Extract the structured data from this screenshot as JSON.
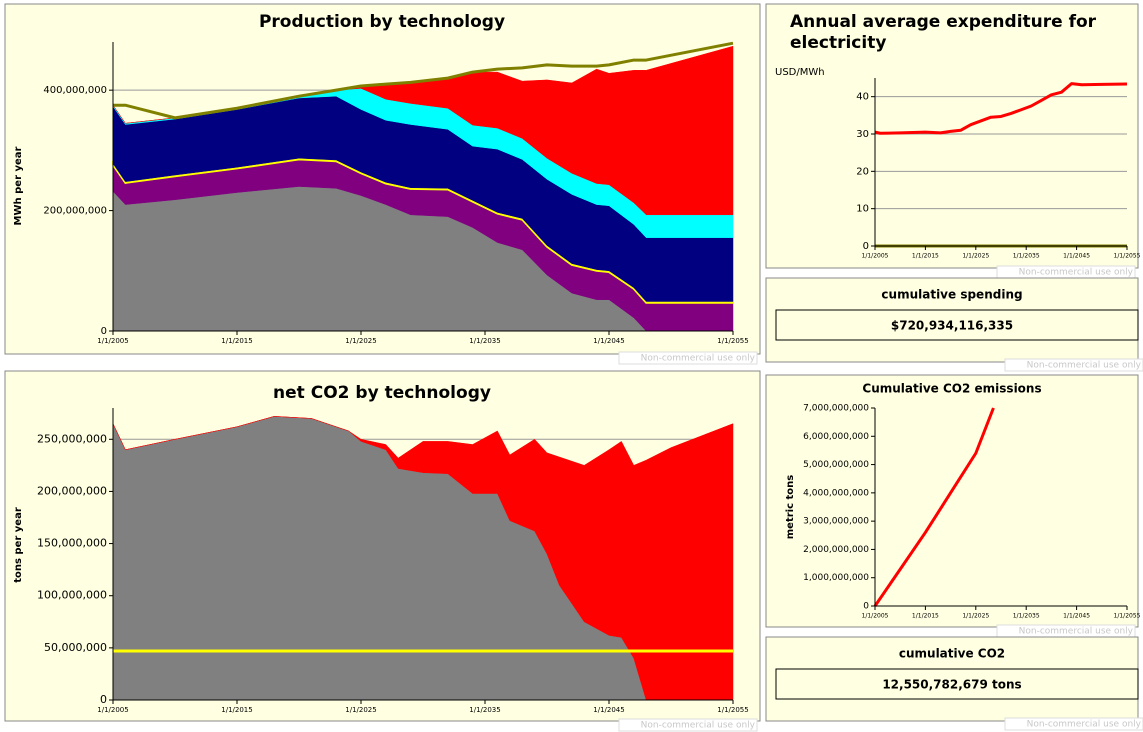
{
  "chart_data": [
    {
      "type": "area",
      "title": "Production by technology",
      "y_label": "MWh per year",
      "x": [
        2005,
        2006,
        2010,
        2015,
        2020,
        2023,
        2025,
        2027,
        2029,
        2032,
        2034,
        2036,
        2038,
        2040,
        2042,
        2044,
        2045,
        2047,
        2048,
        2055
      ],
      "xlim": [
        2005,
        2055
      ],
      "xticks": [
        {
          "value": 2005,
          "label": "1/1/2005"
        },
        {
          "value": 2015,
          "label": "1/1/2015"
        },
        {
          "value": 2025,
          "label": "1/1/2025"
        },
        {
          "value": 2035,
          "label": "1/1/2035"
        },
        {
          "value": 2045,
          "label": "1/1/2045"
        },
        {
          "value": 2055,
          "label": "1/1/2055"
        }
      ],
      "ylim": [
        0,
        480000000
      ],
      "yticks": [
        0,
        {
          "value": 200000000,
          "label": "200,000,000"
        },
        {
          "value": 400000000,
          "label": "400,000,000"
        }
      ],
      "grid": true,
      "series": [
        {
          "color": "#808080",
          "values": [
            232000000,
            210000000,
            218000000,
            230000000,
            240000000,
            237000000,
            225000000,
            210000000,
            193000000,
            190000000,
            172000000,
            147000000,
            135000000,
            93000000,
            63000000,
            52000000,
            52000000,
            22000000,
            0,
            0
          ]
        },
        {
          "color": "#800080",
          "values": [
            44000000,
            36000000,
            39000000,
            40000000,
            45000000,
            45000000,
            37000000,
            35000000,
            43000000,
            45000000,
            43000000,
            48000000,
            50000000,
            47000000,
            47000000,
            48000000,
            46000000,
            48000000,
            47000000,
            47000000
          ]
        },
        {
          "color": "#ffff00",
          "values": [
            2000000,
            2000000,
            2000000,
            2000000,
            2000000,
            2000000,
            2000000,
            2000000,
            2000000,
            2000000,
            2000000,
            2000000,
            2000000,
            2000000,
            2000000,
            2000000,
            2000000,
            2000000,
            2000000,
            2000000
          ]
        },
        {
          "color": "#000080",
          "values": [
            95000000,
            95000000,
            93000000,
            96000000,
            100000000,
            106000000,
            104000000,
            103000000,
            105000000,
            98000000,
            90000000,
            105000000,
            98000000,
            110000000,
            115000000,
            108000000,
            108000000,
            105000000,
            106000000,
            106000000
          ]
        },
        {
          "color": "#00ffff",
          "values": [
            2000000,
            2000000,
            2000000,
            2000000,
            2000000,
            10000000,
            35000000,
            35000000,
            35000000,
            35000000,
            35000000,
            35000000,
            35000000,
            35000000,
            35000000,
            35000000,
            35000000,
            36000000,
            38000000,
            38000000
          ]
        },
        {
          "color": "#ff0000",
          "values": [
            0,
            0,
            0,
            0,
            0,
            0,
            4000000,
            25000000,
            35000000,
            50000000,
            88000000,
            93000000,
            95000000,
            130000000,
            150000000,
            190000000,
            185000000,
            220000000,
            240000000,
            280000000
          ]
        },
        {
          "color": "#808000",
          "style": "line",
          "values": [
            375000000,
            375000000,
            354000000,
            370000000,
            390000000,
            400000000,
            407000000,
            410000000,
            413000000,
            420000000,
            430000000,
            435000000,
            437000000,
            442000000,
            440000000,
            440000000,
            442000000,
            450000000,
            450000000,
            478000000
          ]
        }
      ]
    },
    {
      "type": "area",
      "title": "net CO2 by technology",
      "y_label": "tons per year",
      "x": [
        2005,
        2006,
        2010,
        2015,
        2018,
        2021,
        2024,
        2025,
        2027,
        2028,
        2030,
        2032,
        2034,
        2036,
        2037,
        2039,
        2040,
        2041,
        2043,
        2045,
        2046,
        2047,
        2048,
        2050,
        2055
      ],
      "xlim": [
        2005,
        2055
      ],
      "xticks": [
        {
          "value": 2005,
          "label": "1/1/2005"
        },
        {
          "value": 2015,
          "label": "1/1/2015"
        },
        {
          "value": 2025,
          "label": "1/1/2025"
        },
        {
          "value": 2035,
          "label": "1/1/2035"
        },
        {
          "value": 2045,
          "label": "1/1/2045"
        },
        {
          "value": 2055,
          "label": "1/1/2055"
        }
      ],
      "ylim": [
        0,
        280000000
      ],
      "yticks": [
        0,
        {
          "value": 50000000,
          "label": "50,000,000"
        },
        {
          "value": 100000000,
          "label": "100,000,000"
        },
        {
          "value": 150000000,
          "label": "150,000,000"
        },
        {
          "value": 200000000,
          "label": "200,000,000"
        },
        {
          "value": 250000000,
          "label": "250,000,000"
        }
      ],
      "grid": true,
      "series": [
        {
          "color": "#808080",
          "values": [
            265000000,
            240000000,
            250000000,
            262000000,
            272000000,
            270000000,
            258000000,
            248000000,
            240000000,
            222000000,
            218000000,
            217000000,
            198000000,
            198000000,
            172000000,
            162000000,
            140000000,
            110000000,
            75000000,
            62000000,
            60000000,
            40000000,
            0,
            0,
            0
          ]
        },
        {
          "color": "#ff0000",
          "values": [
            0,
            0,
            0,
            0,
            0,
            0,
            0,
            2000000,
            5000000,
            10000000,
            30000000,
            31000000,
            47000000,
            60000000,
            63000000,
            88000000,
            97000000,
            123000000,
            150000000,
            178000000,
            188000000,
            185000000,
            230000000,
            242000000,
            265000000
          ]
        },
        {
          "color": "#ffff00",
          "style": "line",
          "values": [
            47000000,
            47000000,
            47000000,
            47000000,
            47000000,
            47000000,
            47000000,
            47000000,
            47000000,
            47000000,
            47000000,
            47000000,
            47000000,
            47000000,
            47000000,
            47000000,
            47000000,
            47000000,
            47000000,
            47000000,
            47000000,
            47000000,
            47000000,
            47000000,
            47000000
          ]
        }
      ]
    },
    {
      "type": "line",
      "title": "Annual average expenditure for electricity",
      "y_label": "USD/MWh",
      "x": [
        2005,
        2006,
        2010,
        2015,
        2018,
        2020,
        2022,
        2024,
        2026,
        2028,
        2030,
        2032,
        2034,
        2036,
        2038,
        2040,
        2042,
        2044,
        2046,
        2050,
        2055
      ],
      "xlim": [
        2005,
        2055
      ],
      "xticks": [
        {
          "value": 2005,
          "label": "1/1/2005"
        },
        {
          "value": 2015,
          "label": "1/1/2015"
        },
        {
          "value": 2025,
          "label": "1/1/2025"
        },
        {
          "value": 2035,
          "label": "1/1/2035"
        },
        {
          "value": 2045,
          "label": "1/1/2045"
        },
        {
          "value": 2055,
          "label": "1/1/2055"
        }
      ],
      "ylim": [
        0,
        45
      ],
      "yticks": [
        0,
        10,
        20,
        30,
        40
      ],
      "grid": true,
      "series": [
        {
          "color": "#ff0000",
          "values": [
            30.5,
            30.2,
            30.3,
            30.5,
            30.3,
            30.7,
            31,
            32.5,
            33.5,
            34.5,
            34.7,
            35.5,
            36.5,
            37.5,
            39,
            40.5,
            41.2,
            43.5,
            43.2,
            43.3,
            43.4
          ]
        },
        {
          "color": "#808000",
          "values": [
            0,
            0,
            0,
            0,
            0,
            0,
            0,
            0,
            0,
            0,
            0,
            0,
            0,
            0,
            0,
            0,
            0,
            0,
            0,
            0,
            0
          ]
        }
      ]
    },
    {
      "type": "line",
      "title": "Cumulative CO2 emissions",
      "y_label": "metric tons",
      "x": [
        2005,
        2010,
        2015,
        2020,
        2025,
        2028.5
      ],
      "xlim": [
        2005,
        2055
      ],
      "xticks": [
        {
          "value": 2005,
          "label": "1/1/2005"
        },
        {
          "value": 2015,
          "label": "1/1/2015"
        },
        {
          "value": 2025,
          "label": "1/1/2025"
        },
        {
          "value": 2035,
          "label": "1/1/2035"
        },
        {
          "value": 2045,
          "label": "1/1/2045"
        },
        {
          "value": 2055,
          "label": "1/1/2055"
        }
      ],
      "ylim": [
        0,
        7000000000
      ],
      "yticks": [
        0,
        {
          "value": 1000000000,
          "label": "1,000,000,000"
        },
        {
          "value": 2000000000,
          "label": "2,000,000,000"
        },
        {
          "value": 3000000000,
          "label": "3,000,000,000"
        },
        {
          "value": 4000000000,
          "label": "4,000,000,000"
        },
        {
          "value": 5000000000,
          "label": "5,000,000,000"
        },
        {
          "value": 6000000000,
          "label": "6,000,000,000"
        },
        {
          "value": 7000000000,
          "label": "7,000,000,000"
        }
      ],
      "grid": false,
      "series": [
        {
          "color": "#ff0000",
          "values": [
            0,
            1300000000,
            2600000000,
            4000000000,
            5400000000,
            7000000000
          ]
        }
      ]
    }
  ],
  "panels": [
    {
      "label": "cumulative spending",
      "value": "$720,934,116,335"
    },
    {
      "label": "cumulative CO2",
      "value": "12,550,782,679 tons"
    }
  ],
  "watermark": "Non-commercial use only"
}
